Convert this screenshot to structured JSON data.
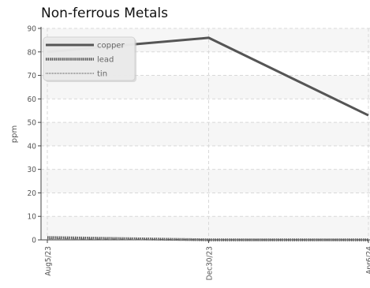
{
  "chart_data": {
    "type": "line",
    "title": "Non-ferrous Metals",
    "ylabel": "ppm",
    "xlabel": "",
    "ylim": [
      0,
      90
    ],
    "yticks": [
      0,
      10,
      20,
      30,
      40,
      50,
      60,
      70,
      80,
      90
    ],
    "x": [
      "Aug5/23",
      "Dec30/23",
      "Apr6/24"
    ],
    "grid": true,
    "legend_position": "top-left",
    "series": [
      {
        "name": "copper",
        "values": [
          80,
          86,
          53
        ],
        "color": "#555555",
        "style": "solid"
      },
      {
        "name": "lead",
        "values": [
          1,
          0,
          0
        ],
        "color": "#555555",
        "style": "dotted"
      },
      {
        "name": "tin",
        "values": [
          0.3,
          0,
          0
        ],
        "color": "#777777",
        "style": "dotted-fine"
      }
    ]
  }
}
